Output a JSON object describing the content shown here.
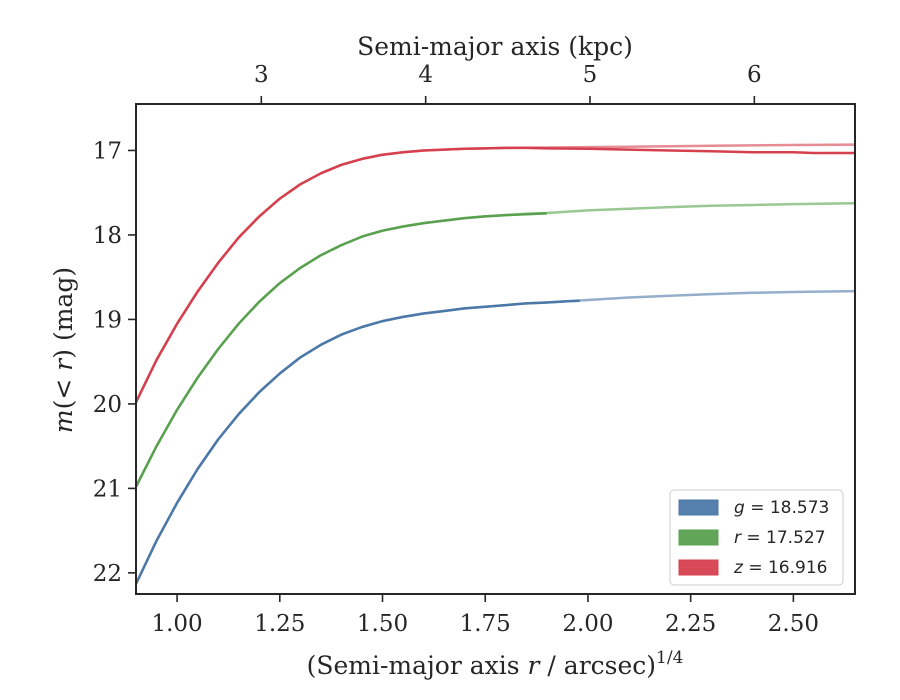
{
  "chart_data": {
    "type": "line",
    "top_axis_label": "Semi-major axis (kpc)",
    "xlabel": {
      "pre": "(Semi-major axis ",
      "var": "r",
      "post": " / arcsec)",
      "sup": "1/4"
    },
    "ylabel": {
      "pre": "m",
      "mid": "(< ",
      "var": "r",
      "post": ") (mag)"
    },
    "xlim": [
      0.9,
      2.65
    ],
    "ylim": [
      22.25,
      16.45
    ],
    "y_inverted": true,
    "grid": false,
    "legend_position": "lower-right",
    "x_ticks": [
      {
        "value": 1.0,
        "label": "1.00"
      },
      {
        "value": 1.25,
        "label": "1.25"
      },
      {
        "value": 1.5,
        "label": "1.50"
      },
      {
        "value": 1.75,
        "label": "1.75"
      },
      {
        "value": 2.0,
        "label": "2.00"
      },
      {
        "value": 2.25,
        "label": "2.25"
      },
      {
        "value": 2.5,
        "label": "2.50"
      }
    ],
    "y_ticks": [
      {
        "value": 17,
        "label": "17"
      },
      {
        "value": 18,
        "label": "18"
      },
      {
        "value": 19,
        "label": "19"
      },
      {
        "value": 20,
        "label": "20"
      },
      {
        "value": 21,
        "label": "21"
      },
      {
        "value": 22,
        "label": "22"
      }
    ],
    "top_ticks": [
      {
        "value": 1.205,
        "label": "3"
      },
      {
        "value": 1.605,
        "label": "4"
      },
      {
        "value": 2.005,
        "label": "5"
      },
      {
        "value": 2.405,
        "label": "6"
      }
    ],
    "series": [
      {
        "name": "g",
        "legend_label": "g = 18.573",
        "legend_var": "g",
        "legend_value": "= 18.573",
        "color": "#4C78A8",
        "data": [
          [
            0.9,
            22.13
          ],
          [
            0.95,
            21.62
          ],
          [
            1.0,
            21.17
          ],
          [
            1.05,
            20.77
          ],
          [
            1.1,
            20.42
          ],
          [
            1.15,
            20.12
          ],
          [
            1.2,
            19.86
          ],
          [
            1.25,
            19.64
          ],
          [
            1.3,
            19.45
          ],
          [
            1.35,
            19.3
          ],
          [
            1.4,
            19.18
          ],
          [
            1.45,
            19.09
          ],
          [
            1.5,
            19.02
          ],
          [
            1.55,
            18.97
          ],
          [
            1.6,
            18.93
          ],
          [
            1.65,
            18.9
          ],
          [
            1.7,
            18.87
          ],
          [
            1.75,
            18.85
          ],
          [
            1.8,
            18.83
          ],
          [
            1.85,
            18.81
          ],
          [
            1.9,
            18.8
          ],
          [
            1.95,
            18.785
          ],
          [
            1.98,
            18.78
          ]
        ],
        "model": [
          [
            0.9,
            22.13
          ],
          [
            0.95,
            21.62
          ],
          [
            1.0,
            21.17
          ],
          [
            1.05,
            20.77
          ],
          [
            1.1,
            20.42
          ],
          [
            1.15,
            20.12
          ],
          [
            1.2,
            19.86
          ],
          [
            1.25,
            19.64
          ],
          [
            1.3,
            19.45
          ],
          [
            1.35,
            19.3
          ],
          [
            1.4,
            19.18
          ],
          [
            1.45,
            19.09
          ],
          [
            1.5,
            19.02
          ],
          [
            1.55,
            18.97
          ],
          [
            1.6,
            18.93
          ],
          [
            1.65,
            18.9
          ],
          [
            1.7,
            18.87
          ],
          [
            1.75,
            18.85
          ],
          [
            1.8,
            18.83
          ],
          [
            1.85,
            18.81
          ],
          [
            1.9,
            18.8
          ],
          [
            1.95,
            18.785
          ],
          [
            2.0,
            18.77
          ],
          [
            2.1,
            18.74
          ],
          [
            2.2,
            18.72
          ],
          [
            2.3,
            18.7
          ],
          [
            2.4,
            18.685
          ],
          [
            2.5,
            18.675
          ],
          [
            2.65,
            18.665
          ]
        ]
      },
      {
        "name": "r",
        "legend_label": "r = 17.527",
        "legend_var": "r",
        "legend_value": "= 17.527",
        "color": "#59A14F",
        "data": [
          [
            0.9,
            20.98
          ],
          [
            0.95,
            20.5
          ],
          [
            1.0,
            20.07
          ],
          [
            1.05,
            19.69
          ],
          [
            1.1,
            19.35
          ],
          [
            1.15,
            19.05
          ],
          [
            1.2,
            18.79
          ],
          [
            1.25,
            18.57
          ],
          [
            1.3,
            18.39
          ],
          [
            1.35,
            18.24
          ],
          [
            1.4,
            18.12
          ],
          [
            1.45,
            18.02
          ],
          [
            1.5,
            17.95
          ],
          [
            1.55,
            17.9
          ],
          [
            1.6,
            17.86
          ],
          [
            1.65,
            17.83
          ],
          [
            1.7,
            17.8
          ],
          [
            1.75,
            17.78
          ],
          [
            1.8,
            17.765
          ],
          [
            1.85,
            17.755
          ],
          [
            1.9,
            17.745
          ]
        ],
        "model": [
          [
            0.9,
            20.98
          ],
          [
            0.95,
            20.5
          ],
          [
            1.0,
            20.07
          ],
          [
            1.05,
            19.69
          ],
          [
            1.1,
            19.35
          ],
          [
            1.15,
            19.05
          ],
          [
            1.2,
            18.79
          ],
          [
            1.25,
            18.57
          ],
          [
            1.3,
            18.39
          ],
          [
            1.35,
            18.24
          ],
          [
            1.4,
            18.12
          ],
          [
            1.45,
            18.02
          ],
          [
            1.5,
            17.95
          ],
          [
            1.55,
            17.9
          ],
          [
            1.6,
            17.86
          ],
          [
            1.65,
            17.83
          ],
          [
            1.7,
            17.8
          ],
          [
            1.75,
            17.78
          ],
          [
            1.8,
            17.765
          ],
          [
            1.85,
            17.75
          ],
          [
            1.9,
            17.74
          ],
          [
            2.0,
            17.71
          ],
          [
            2.1,
            17.69
          ],
          [
            2.2,
            17.67
          ],
          [
            2.3,
            17.655
          ],
          [
            2.4,
            17.645
          ],
          [
            2.5,
            17.635
          ],
          [
            2.65,
            17.625
          ]
        ]
      },
      {
        "name": "z",
        "legend_label": "z = 16.916",
        "legend_var": "z",
        "legend_value": "= 16.916",
        "color": "#D6404E",
        "data": [
          [
            0.9,
            19.98
          ],
          [
            0.95,
            19.48
          ],
          [
            1.0,
            19.05
          ],
          [
            1.05,
            18.67
          ],
          [
            1.1,
            18.33
          ],
          [
            1.15,
            18.03
          ],
          [
            1.2,
            17.78
          ],
          [
            1.25,
            17.57
          ],
          [
            1.3,
            17.4
          ],
          [
            1.35,
            17.27
          ],
          [
            1.4,
            17.17
          ],
          [
            1.45,
            17.1
          ],
          [
            1.5,
            17.05
          ],
          [
            1.55,
            17.02
          ],
          [
            1.6,
            17.0
          ],
          [
            1.65,
            16.99
          ],
          [
            1.7,
            16.98
          ],
          [
            1.75,
            16.975
          ],
          [
            1.8,
            16.97
          ],
          [
            1.85,
            16.97
          ],
          [
            1.9,
            16.975
          ],
          [
            2.0,
            16.98
          ],
          [
            2.1,
            16.99
          ],
          [
            2.2,
            17.0
          ],
          [
            2.3,
            17.01
          ],
          [
            2.4,
            17.02
          ],
          [
            2.5,
            17.02
          ],
          [
            2.55,
            17.03
          ],
          [
            2.65,
            17.03
          ]
        ],
        "model": [
          [
            0.9,
            19.98
          ],
          [
            0.95,
            19.48
          ],
          [
            1.0,
            19.05
          ],
          [
            1.05,
            18.67
          ],
          [
            1.1,
            18.33
          ],
          [
            1.15,
            18.03
          ],
          [
            1.2,
            17.78
          ],
          [
            1.25,
            17.57
          ],
          [
            1.3,
            17.4
          ],
          [
            1.35,
            17.27
          ],
          [
            1.4,
            17.17
          ],
          [
            1.45,
            17.1
          ],
          [
            1.5,
            17.05
          ],
          [
            1.55,
            17.02
          ],
          [
            1.6,
            17.0
          ],
          [
            1.65,
            16.99
          ],
          [
            1.7,
            16.98
          ],
          [
            1.75,
            16.975
          ],
          [
            1.8,
            16.97
          ],
          [
            1.9,
            16.965
          ],
          [
            2.0,
            16.96
          ],
          [
            2.1,
            16.955
          ],
          [
            2.2,
            16.95
          ],
          [
            2.3,
            16.945
          ],
          [
            2.4,
            16.94
          ],
          [
            2.5,
            16.935
          ],
          [
            2.65,
            16.93
          ]
        ]
      }
    ]
  }
}
